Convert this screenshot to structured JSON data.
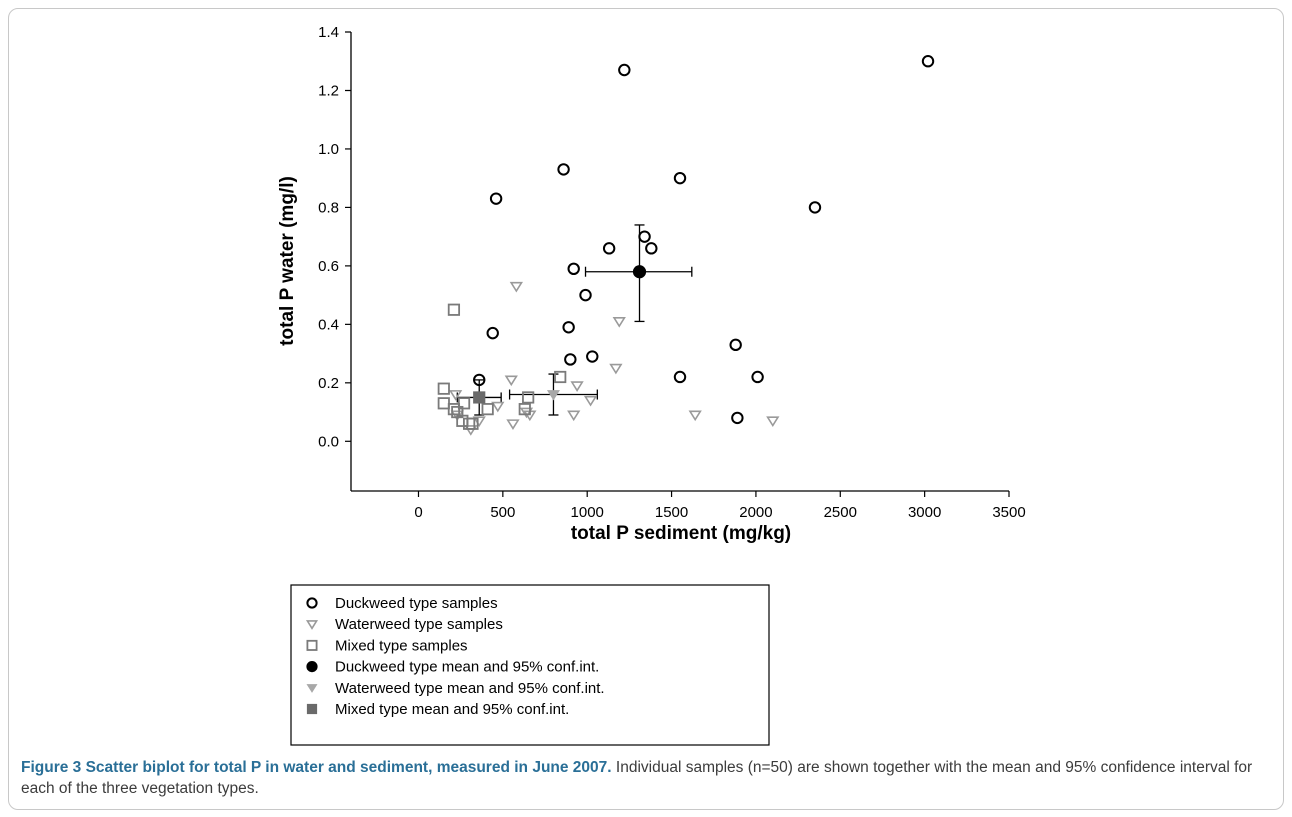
{
  "chart_data": {
    "type": "scatter",
    "xlabel": "total P sediment (mg/kg)",
    "ylabel": "total P water (mg/l)",
    "xlim": [
      -400,
      3500
    ],
    "ylim": [
      -0.17,
      1.4
    ],
    "xticks": [
      0,
      500,
      1000,
      1500,
      2000,
      2500,
      3000,
      3500
    ],
    "yticks": [
      0.0,
      0.2,
      0.4,
      0.6,
      0.8,
      1.0,
      1.2,
      1.4
    ],
    "ytick_labels": [
      "0.0",
      "0.2",
      "0.4",
      "0.6",
      "0.8",
      "1.0",
      "1.2",
      "1.4"
    ],
    "grid": false,
    "legend_position": "below plot",
    "series": [
      {
        "name": "Duckweed type samples",
        "marker": "open-circle",
        "color": "#000000",
        "points": [
          [
            3020,
            1.3
          ],
          [
            1220,
            1.27
          ],
          [
            860,
            0.93
          ],
          [
            1550,
            0.9
          ],
          [
            460,
            0.83
          ],
          [
            2350,
            0.8
          ],
          [
            1340,
            0.7
          ],
          [
            1130,
            0.66
          ],
          [
            1380,
            0.66
          ],
          [
            920,
            0.59
          ],
          [
            990,
            0.5
          ],
          [
            890,
            0.39
          ],
          [
            440,
            0.37
          ],
          [
            1880,
            0.33
          ],
          [
            1030,
            0.29
          ],
          [
            900,
            0.28
          ],
          [
            1550,
            0.22
          ],
          [
            2010,
            0.22
          ],
          [
            360,
            0.21
          ],
          [
            1890,
            0.08
          ]
        ]
      },
      {
        "name": "Waterweed type samples",
        "marker": "open-triangle-down",
        "color": "#9a9a9a",
        "points": [
          [
            580,
            0.53
          ],
          [
            1190,
            0.41
          ],
          [
            1170,
            0.25
          ],
          [
            550,
            0.21
          ],
          [
            940,
            0.19
          ],
          [
            220,
            0.16
          ],
          [
            470,
            0.12
          ],
          [
            1020,
            0.14
          ],
          [
            640,
            0.1
          ],
          [
            660,
            0.09
          ],
          [
            920,
            0.09
          ],
          [
            1640,
            0.09
          ],
          [
            2100,
            0.07
          ],
          [
            560,
            0.06
          ],
          [
            360,
            0.07
          ],
          [
            310,
            0.04
          ],
          [
            230,
            0.09
          ]
        ]
      },
      {
        "name": "Mixed type samples",
        "marker": "open-square",
        "color": "#7a7a7a",
        "points": [
          [
            210,
            0.45
          ],
          [
            150,
            0.18
          ],
          [
            840,
            0.22
          ],
          [
            150,
            0.13
          ],
          [
            270,
            0.13
          ],
          [
            210,
            0.11
          ],
          [
            230,
            0.1
          ],
          [
            410,
            0.11
          ],
          [
            630,
            0.11
          ],
          [
            650,
            0.15
          ],
          [
            260,
            0.07
          ],
          [
            300,
            0.06
          ],
          [
            320,
            0.06
          ]
        ]
      }
    ],
    "means": [
      {
        "name": "Duckweed type mean and 95% conf.int.",
        "marker": "filled-circle",
        "color": "#000000",
        "x": 1310,
        "y": 0.58,
        "x_ci": [
          990,
          1620
        ],
        "y_ci": [
          0.41,
          0.74
        ]
      },
      {
        "name": "Waterweed type mean and 95% conf.int.",
        "marker": "filled-triangle-down",
        "color": "#a8a8a8",
        "x": 800,
        "y": 0.16,
        "x_ci": [
          540,
          1060
        ],
        "y_ci": [
          0.09,
          0.23
        ]
      },
      {
        "name": "Mixed type mean and 95% conf.int.",
        "marker": "filled-square",
        "color": "#6a6a6a",
        "x": 360,
        "y": 0.15,
        "x_ci": [
          230,
          490
        ],
        "y_ci": [
          0.09,
          0.21
        ]
      }
    ]
  },
  "caption": {
    "title": "Figure 3 Scatter biplot for total P in water and sediment, measured in June 2007.",
    "text": "Individual samples (n=50) are shown together with the mean and 95% confidence interval for each of the three vegetation types."
  }
}
